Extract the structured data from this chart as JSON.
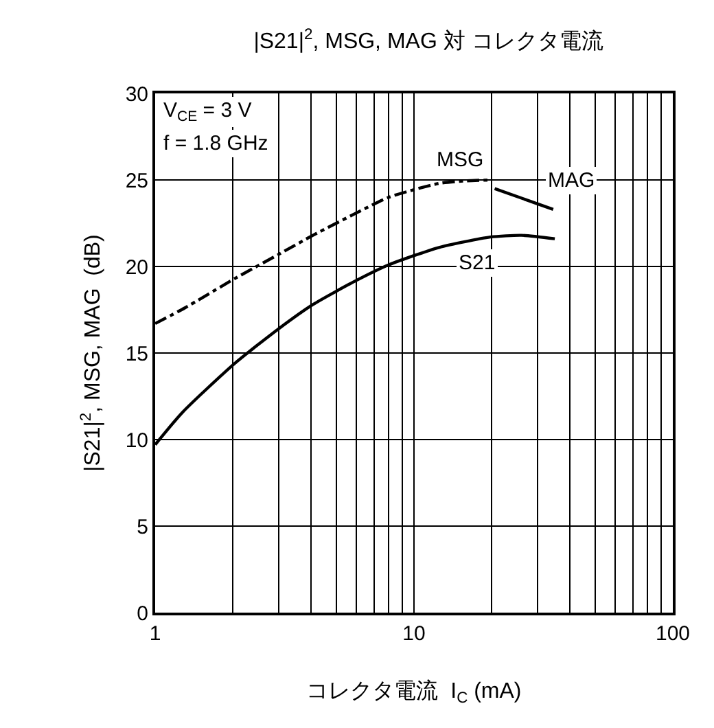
{
  "chart_data": {
    "type": "line",
    "title": "|S21|$^{2}$, MSG, MAG 対 コレクタ電流",
    "xlabel": "コレクタ電流  I$_{C}$ (mA)",
    "ylabel": "|S21|$^{2}$, MSG, MAG  (dB)",
    "annotations": [
      "V$_{CE}$ = 3 V",
      "f = 1.8 GHz"
    ],
    "log": "x",
    "grid": true,
    "marker": "none",
    "xlim": [
      1,
      100
    ],
    "xticks": [
      1,
      {
        "value": 2,
        "label": null
      },
      {
        "value": 3,
        "label": null
      },
      {
        "value": 4,
        "label": null
      },
      {
        "value": 5,
        "label": null
      },
      {
        "value": 6,
        "label": null
      },
      {
        "value": 7,
        "label": null
      },
      {
        "value": 8,
        "label": null
      },
      {
        "value": 9,
        "label": null
      },
      10,
      {
        "value": 20,
        "label": null
      },
      {
        "value": 30,
        "label": null
      },
      {
        "value": 40,
        "label": null
      },
      {
        "value": 50,
        "label": null
      },
      {
        "value": 60,
        "label": null
      },
      {
        "value": 70,
        "label": null
      },
      {
        "value": 80,
        "label": null
      },
      {
        "value": 90,
        "label": null
      },
      100
    ],
    "ylim": [
      0,
      30
    ],
    "yticks": [
      0,
      5,
      10,
      15,
      20,
      25,
      30
    ],
    "series": [
      {
        "name": "MSG",
        "color": "#000000",
        "line_style": "dashed",
        "x": [
          1,
          1.3,
          2.03,
          3,
          4.07,
          6,
          8,
          12.5,
          16,
          20
        ],
        "values": [
          16.7,
          17.6,
          19.3,
          20.7,
          21.8,
          23.1,
          24.0,
          24.8,
          24.95,
          25.0
        ]
      },
      {
        "name": "MAG",
        "color": "#000000",
        "line_style": "solid",
        "x": [
          20.5,
          34.5
        ],
        "values": [
          24.5,
          23.3
        ]
      },
      {
        "name": "S21",
        "color": "#000000",
        "line_style": "solid",
        "x": [
          1,
          1.28,
          2.03,
          3,
          4.07,
          6,
          8,
          12.5,
          19.7,
          26,
          35
        ],
        "values": [
          9.7,
          11.6,
          14.4,
          16.4,
          17.8,
          19.2,
          20.1,
          21.1,
          21.7,
          21.8,
          21.6
        ]
      }
    ]
  }
}
